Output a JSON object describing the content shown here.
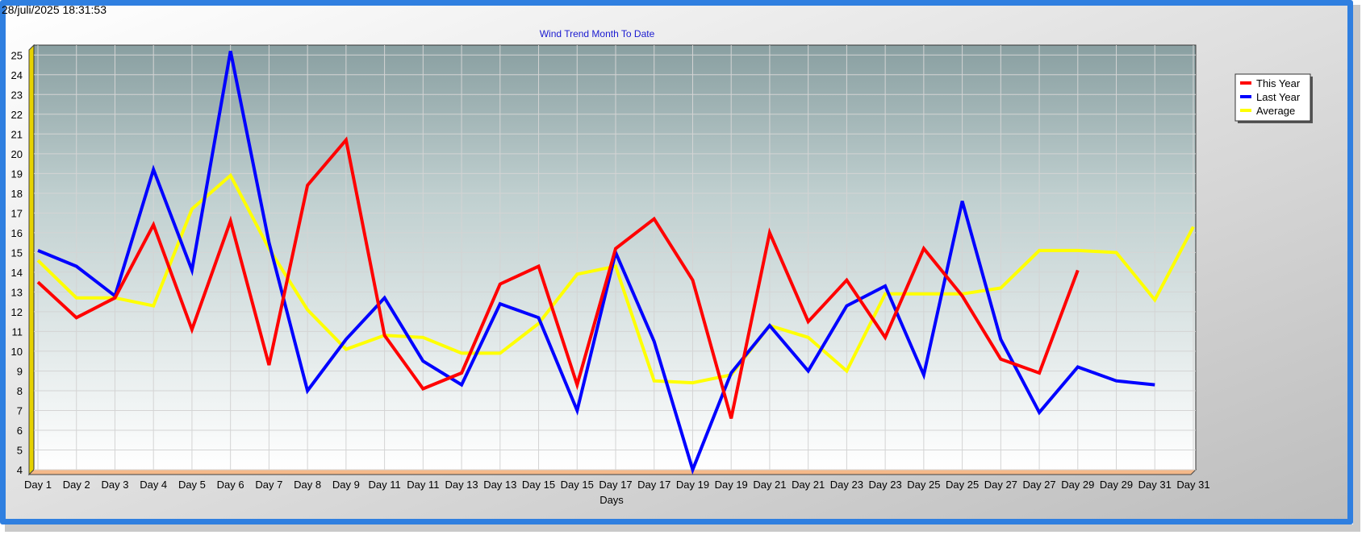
{
  "timestamp": "28/juli/2025 18:31:53",
  "chart_data": {
    "type": "line",
    "title": "Wind Trend Month To Date",
    "xlabel": "Days",
    "ylabel": "",
    "ylim": [
      4,
      25.5
    ],
    "y_ticks": [
      4,
      5,
      6,
      7,
      8,
      9,
      10,
      11,
      12,
      13,
      14,
      15,
      16,
      17,
      18,
      19,
      20,
      21,
      22,
      23,
      24,
      25
    ],
    "categories": [
      "Day 1",
      "Day 2",
      "Day 3",
      "Day 4",
      "Day 5",
      "Day 6",
      "Day 7",
      "Day 8",
      "Day 9",
      "Day 11",
      "Day 11",
      "Day 13",
      "Day 13",
      "Day 15",
      "Day 15",
      "Day 17",
      "Day 17",
      "Day 19",
      "Day 19",
      "Day 21",
      "Day 21",
      "Day 23",
      "Day 23",
      "Day 25",
      "Day 25",
      "Day 27",
      "Day 27",
      "Day 29",
      "Day 29",
      "Day 31",
      "Day 31"
    ],
    "grid": true,
    "legend_position": "top-right",
    "series": [
      {
        "name": "This Year",
        "color": "#ff0000",
        "values": [
          13.5,
          11.7,
          12.7,
          16.4,
          11.1,
          16.6,
          9.3,
          18.4,
          20.7,
          10.8,
          8.1,
          8.9,
          13.4,
          14.3,
          8.3,
          15.2,
          16.7,
          13.6,
          6.6,
          16.0,
          11.5,
          13.6,
          10.7,
          15.2,
          12.8,
          9.6,
          8.9,
          14.1,
          null,
          null,
          null
        ]
      },
      {
        "name": "Last Year",
        "color": "#0000ff",
        "values": [
          15.1,
          14.3,
          12.8,
          19.2,
          14.1,
          25.2,
          15.5,
          8.0,
          10.6,
          12.7,
          9.5,
          8.3,
          12.4,
          11.7,
          7.0,
          15.0,
          10.5,
          4.0,
          8.9,
          11.3,
          9.0,
          12.3,
          13.3,
          8.8,
          17.6,
          10.6,
          6.9,
          9.2,
          8.5,
          8.3,
          null
        ]
      },
      {
        "name": "Average",
        "color": "#ffff00",
        "values": [
          14.6,
          12.7,
          12.7,
          12.3,
          17.2,
          18.9,
          15.2,
          12.1,
          10.1,
          10.8,
          10.7,
          9.9,
          9.9,
          11.4,
          13.9,
          14.3,
          8.5,
          8.4,
          8.8,
          11.3,
          10.7,
          9.0,
          12.9,
          12.9,
          12.9,
          13.2,
          15.1,
          15.1,
          15.0,
          12.6,
          16.3
        ]
      }
    ]
  }
}
